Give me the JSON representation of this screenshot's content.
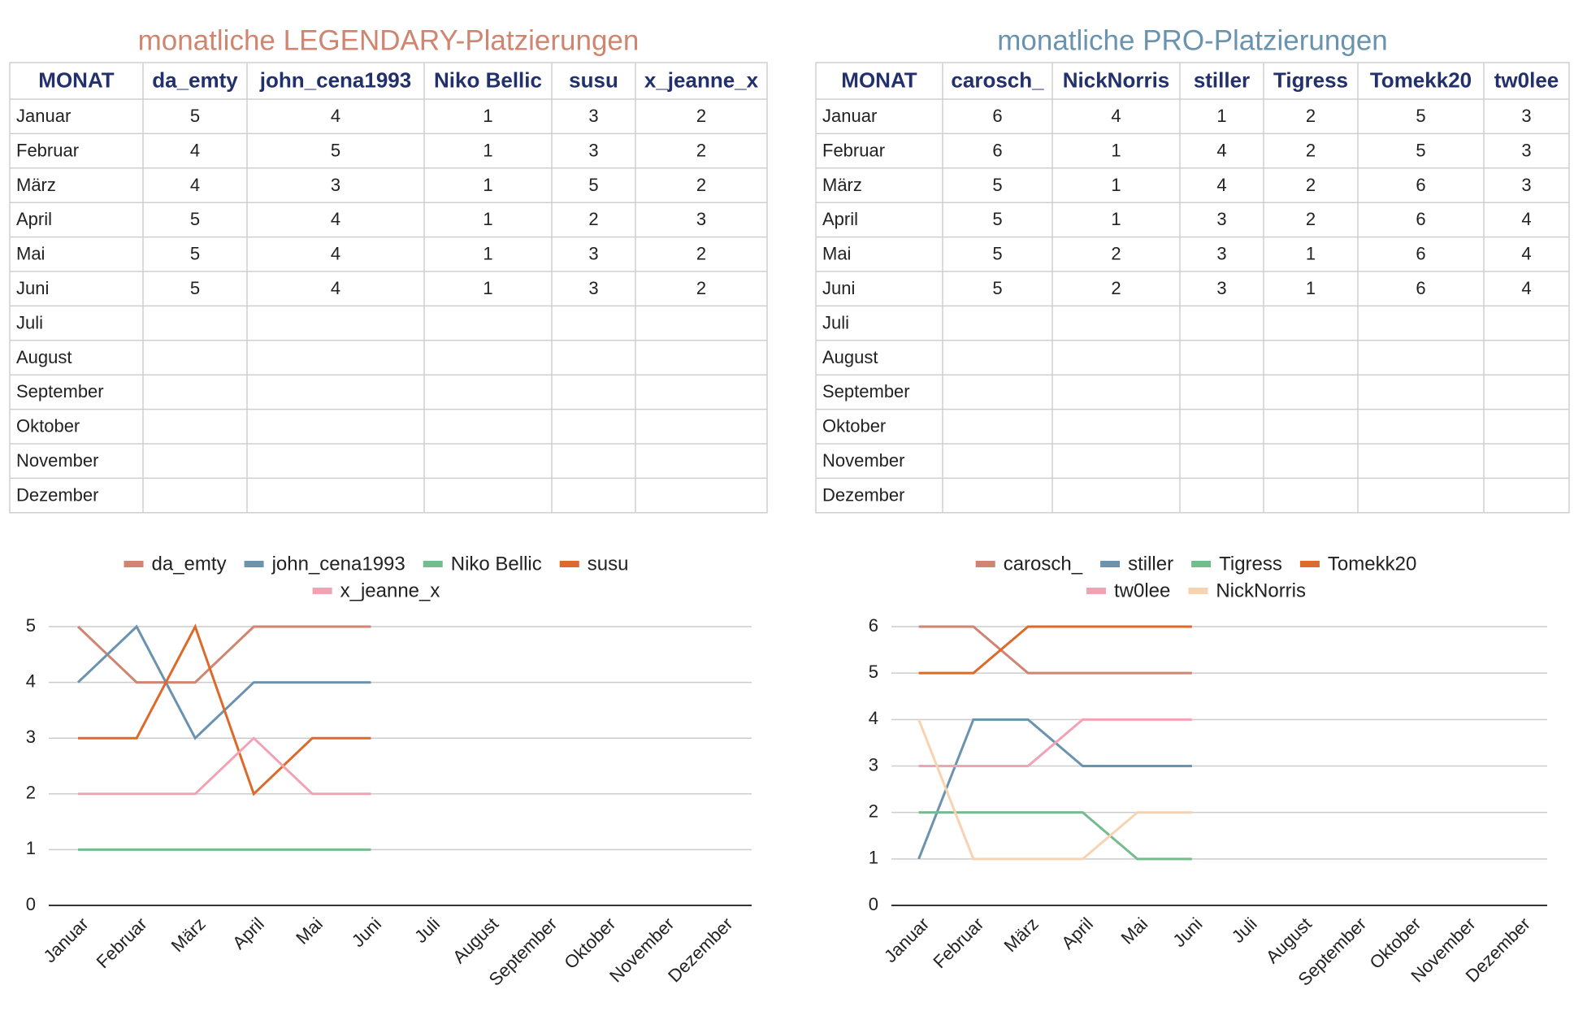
{
  "tables": [
    {
      "title": "monatliche LEGENDARY-Platzierungen",
      "headers": [
        "MONAT",
        "da_emty",
        "john_cena1993",
        "Niko Bellic",
        "susu",
        "x_jeanne_x"
      ],
      "rows": [
        [
          "Januar",
          5,
          4,
          1,
          3,
          2
        ],
        [
          "Februar",
          4,
          5,
          1,
          3,
          2
        ],
        [
          "März",
          4,
          3,
          1,
          5,
          2
        ],
        [
          "April",
          5,
          4,
          1,
          2,
          3
        ],
        [
          "Mai",
          5,
          4,
          1,
          3,
          2
        ],
        [
          "Juni",
          5,
          4,
          1,
          3,
          2
        ],
        [
          "Juli"
        ],
        [
          "August"
        ],
        [
          "September"
        ],
        [
          "Oktober"
        ],
        [
          "November"
        ],
        [
          "Dezember"
        ]
      ]
    },
    {
      "title": "monatliche PRO-Platzierungen",
      "headers": [
        "MONAT",
        "carosch_",
        "NickNorris",
        "stiller",
        "Tigress",
        "Tomekk20",
        "tw0lee"
      ],
      "rows": [
        [
          "Januar",
          6,
          4,
          1,
          2,
          5,
          3
        ],
        [
          "Februar",
          6,
          1,
          4,
          2,
          5,
          3
        ],
        [
          "März",
          5,
          1,
          4,
          2,
          6,
          3
        ],
        [
          "April",
          5,
          1,
          3,
          2,
          6,
          4
        ],
        [
          "Mai",
          5,
          2,
          3,
          1,
          6,
          4
        ],
        [
          "Juni",
          5,
          2,
          3,
          1,
          6,
          4
        ],
        [
          "Juli"
        ],
        [
          "August"
        ],
        [
          "September"
        ],
        [
          "Oktober"
        ],
        [
          "November"
        ],
        [
          "Dezember"
        ]
      ]
    }
  ],
  "chart_data": [
    {
      "type": "line",
      "categories": [
        "Januar",
        "Februar",
        "März",
        "April",
        "Mai",
        "Juni",
        "Juli",
        "August",
        "September",
        "Oktober",
        "November",
        "Dezember"
      ],
      "ylim": [
        0,
        5
      ],
      "yticks": [
        0,
        1,
        2,
        3,
        4,
        5
      ],
      "grid": true,
      "legend": "top",
      "series": [
        {
          "name": "da_emty",
          "color": "#cf8570",
          "values": [
            5,
            4,
            4,
            5,
            5,
            5,
            null,
            null,
            null,
            null,
            null,
            null
          ]
        },
        {
          "name": "john_cena1993",
          "color": "#6a93b0",
          "values": [
            4,
            5,
            3,
            4,
            4,
            4,
            null,
            null,
            null,
            null,
            null,
            null
          ]
        },
        {
          "name": "Niko Bellic",
          "color": "#74bb8d",
          "values": [
            1,
            1,
            1,
            1,
            1,
            1,
            null,
            null,
            null,
            null,
            null,
            null
          ]
        },
        {
          "name": "susu",
          "color": "#dd6a2a",
          "values": [
            3,
            3,
            5,
            2,
            3,
            3,
            null,
            null,
            null,
            null,
            null,
            null
          ]
        },
        {
          "name": "x_jeanne_x",
          "color": "#f2a3b3",
          "values": [
            2,
            2,
            2,
            3,
            2,
            2,
            null,
            null,
            null,
            null,
            null,
            null
          ]
        }
      ]
    },
    {
      "type": "line",
      "categories": [
        "Januar",
        "Februar",
        "März",
        "April",
        "Mai",
        "Juni",
        "Juli",
        "August",
        "September",
        "Oktober",
        "November",
        "Dezember"
      ],
      "ylim": [
        0,
        6
      ],
      "yticks": [
        0,
        1,
        2,
        3,
        4,
        5,
        6
      ],
      "grid": true,
      "legend": "top",
      "series": [
        {
          "name": "carosch_",
          "color": "#cf8570",
          "values": [
            6,
            6,
            5,
            5,
            5,
            5,
            null,
            null,
            null,
            null,
            null,
            null
          ]
        },
        {
          "name": "stiller",
          "color": "#6a93b0",
          "values": [
            1,
            4,
            4,
            3,
            3,
            3,
            null,
            null,
            null,
            null,
            null,
            null
          ]
        },
        {
          "name": "Tigress",
          "color": "#74bb8d",
          "values": [
            2,
            2,
            2,
            2,
            1,
            1,
            null,
            null,
            null,
            null,
            null,
            null
          ]
        },
        {
          "name": "Tomekk20",
          "color": "#dd6a2a",
          "values": [
            5,
            5,
            6,
            6,
            6,
            6,
            null,
            null,
            null,
            null,
            null,
            null
          ]
        },
        {
          "name": "tw0lee",
          "color": "#f2a3b3",
          "values": [
            3,
            3,
            3,
            4,
            4,
            4,
            null,
            null,
            null,
            null,
            null,
            null
          ]
        },
        {
          "name": "NickNorris",
          "color": "#f7d3b2",
          "values": [
            4,
            1,
            1,
            1,
            2,
            2,
            null,
            null,
            null,
            null,
            null,
            null
          ]
        }
      ]
    }
  ]
}
